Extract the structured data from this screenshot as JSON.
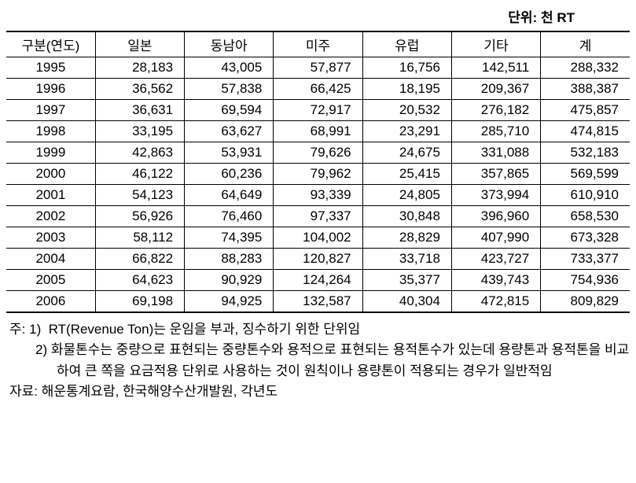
{
  "unit_label": "단위: 천 RT",
  "table": {
    "columns": [
      "구분(연도)",
      "일본",
      "동남아",
      "미주",
      "유럽",
      "기타",
      "계"
    ],
    "rows": [
      [
        "1995",
        "28,183",
        "43,005",
        "57,877",
        "16,756",
        "142,511",
        "288,332"
      ],
      [
        "1996",
        "36,562",
        "57,838",
        "66,425",
        "18,195",
        "209,367",
        "388,387"
      ],
      [
        "1997",
        "36,631",
        "69,594",
        "72,917",
        "20,532",
        "276,182",
        "475,857"
      ],
      [
        "1998",
        "33,195",
        "63,627",
        "68,991",
        "23,291",
        "285,710",
        "474,815"
      ],
      [
        "1999",
        "42,863",
        "53,931",
        "79,626",
        "24,675",
        "331,088",
        "532,183"
      ],
      [
        "2000",
        "46,122",
        "60,236",
        "79,962",
        "25,415",
        "357,865",
        "569,599"
      ],
      [
        "2001",
        "54,123",
        "64,649",
        "93,339",
        "24,805",
        "373,994",
        "610,910"
      ],
      [
        "2002",
        "56,926",
        "76,460",
        "97,337",
        "30,848",
        "396,960",
        "658,530"
      ],
      [
        "2003",
        "58,112",
        "74,395",
        "104,002",
        "28,829",
        "407,990",
        "673,328"
      ],
      [
        "2004",
        "66,822",
        "88,283",
        "120,827",
        "33,718",
        "423,727",
        "733,377"
      ],
      [
        "2005",
        "64,623",
        "90,929",
        "124,264",
        "35,377",
        "439,743",
        "754,936"
      ],
      [
        "2006",
        "69,198",
        "94,925",
        "132,587",
        "40,304",
        "472,815",
        "809,829"
      ]
    ],
    "border_color": "#000000",
    "font_size": 17
  },
  "footnotes": {
    "note_prefix": "주:",
    "note1_num": "1)",
    "note1_text": "RT(Revenue Ton)는 운임을 부과, 징수하기 위한 단위임",
    "note2_num": "2)",
    "note2_text": "화물톤수는 중량으로 표현되는 중량톤수와 용적으로 표현되는 용적톤수가 있는데 용량톤과 용적톤을 비교하여 큰 쪽을 요금적용 단위로 사용하는 것이 원칙이나 용량톤이 적용되는 경우가 일반적임",
    "source_prefix": "자료:",
    "source_text": "해운통계요람, 한국해양수산개발원, 각년도"
  }
}
